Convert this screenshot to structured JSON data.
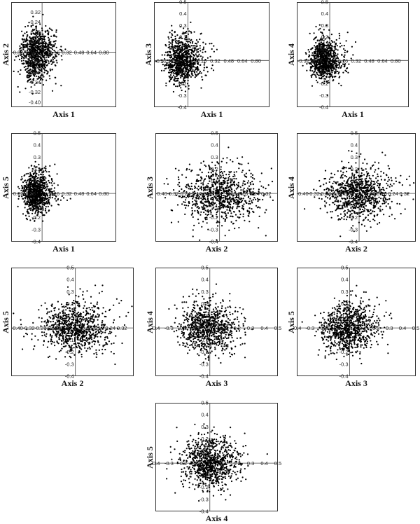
{
  "chart_data": [
    {
      "type": "scatter",
      "xlabel": "Axis 1",
      "ylabel": "Axis 2",
      "x_ticks": [
        "-0.32",
        "-0.16",
        "0.16",
        "0.32",
        "0.48",
        "0.64",
        "0.80"
      ],
      "y_ticks": [
        "0.32",
        "0.24",
        "0.16",
        "0.08",
        "-0.08",
        "-0.16",
        "-0.24",
        "-0.32",
        "-0.40"
      ],
      "xlim": [
        -0.4,
        0.96
      ],
      "ylim": [
        -0.44,
        0.4
      ],
      "n_points": 900,
      "cloud": {
        "cx": -0.08,
        "sx": 0.09,
        "cy": 0.0,
        "sy": 0.09,
        "skew_x": 0.35,
        "skew_y": -0.25,
        "seed": 11
      }
    },
    {
      "type": "scatter",
      "xlabel": "Axis 1",
      "ylabel": "Axis 3",
      "x_ticks": [
        "-0.32",
        "-0.16",
        "0.16",
        "0.32",
        "0.48",
        "0.64",
        "0.80"
      ],
      "y_ticks": [
        "0.5",
        "0.4",
        "0.3",
        "0.2",
        "0.1",
        "-0.1",
        "-0.2",
        "-0.3",
        "-0.4"
      ],
      "xlim": [
        -0.4,
        0.96
      ],
      "ylim": [
        -0.4,
        0.5
      ],
      "n_points": 900,
      "cloud": {
        "cx": -0.08,
        "sx": 0.09,
        "cy": -0.01,
        "sy": 0.09,
        "skew_x": 0.35,
        "skew_y": 0.2,
        "seed": 23
      }
    },
    {
      "type": "scatter",
      "xlabel": "Axis 1",
      "ylabel": "Axis 4",
      "x_ticks": [
        "-0.32",
        "-0.16",
        "0.16",
        "0.32",
        "0.48",
        "0.64",
        "0.80"
      ],
      "y_ticks": [
        "0.5",
        "0.4",
        "0.3",
        "0.2",
        "0.1",
        "-0.1",
        "-0.2",
        "-0.3",
        "-0.4"
      ],
      "xlim": [
        -0.4,
        0.96
      ],
      "ylim": [
        -0.4,
        0.5
      ],
      "n_points": 900,
      "cloud": {
        "cx": -0.07,
        "sx": 0.08,
        "cy": 0.0,
        "sy": 0.08,
        "skew_x": 0.4,
        "skew_y": 0.2,
        "seed": 37
      }
    },
    {
      "type": "scatter",
      "xlabel": "Axis 1",
      "ylabel": "Axis 5",
      "x_ticks": [
        "-0.32",
        "-0.16",
        "0.16",
        "0.32",
        "0.48",
        "0.64",
        "0.80"
      ],
      "y_ticks": [
        "0.5",
        "0.4",
        "0.3",
        "0.2",
        "0.1",
        "-0.1",
        "-0.2",
        "-0.3",
        "-0.4"
      ],
      "xlim": [
        -0.4,
        0.96
      ],
      "ylim": [
        -0.4,
        0.5
      ],
      "n_points": 900,
      "cloud": {
        "cx": -0.08,
        "sx": 0.08,
        "cy": 0.0,
        "sy": 0.08,
        "skew_x": 0.35,
        "skew_y": 0.1,
        "seed": 41
      }
    },
    {
      "type": "scatter",
      "xlabel": "Axis 2",
      "ylabel": "Axis 3",
      "x_ticks": [
        "-0.40",
        "-0.32",
        "-0.24",
        "-0.16",
        "-0.08",
        "0.08",
        "0.16",
        "0.24",
        "0.32"
      ],
      "y_ticks": [
        "0.5",
        "0.4",
        "0.3",
        "0.2",
        "0.1",
        "-0.1",
        "-0.2",
        "-0.3",
        "-0.4"
      ],
      "xlim": [
        -0.44,
        0.4
      ],
      "ylim": [
        -0.4,
        0.5
      ],
      "n_points": 900,
      "cloud": {
        "cx": 0.0,
        "sx": 0.13,
        "cy": -0.01,
        "sy": 0.11,
        "skew_x": 0.0,
        "skew_y": 0.1,
        "seed": 53
      }
    },
    {
      "type": "scatter",
      "xlabel": "Axis 2",
      "ylabel": "Axis 4",
      "x_ticks": [
        "-0.40",
        "-0.32",
        "-0.24",
        "-0.16",
        "-0.08",
        "0.08",
        "0.16",
        "0.24",
        "0.32"
      ],
      "y_ticks": [
        "0.5",
        "0.4",
        "0.3",
        "0.2",
        "0.1",
        "-0.1",
        "-0.2",
        "-0.3",
        "-0.4"
      ],
      "xlim": [
        -0.44,
        0.4
      ],
      "ylim": [
        -0.4,
        0.5
      ],
      "n_points": 900,
      "cloud": {
        "cx": 0.0,
        "sx": 0.12,
        "cy": 0.0,
        "sy": 0.1,
        "skew_x": 0.0,
        "skew_y": 0.1,
        "seed": 67
      }
    },
    {
      "type": "scatter",
      "xlabel": "Axis 2",
      "ylabel": "Axis 5",
      "x_ticks": [
        "-0.40",
        "-0.32",
        "-0.24",
        "-0.16",
        "-0.08",
        "0.08",
        "0.16",
        "0.24",
        "0.32"
      ],
      "y_ticks": [
        "0.5",
        "0.4",
        "0.3",
        "0.2",
        "0.1",
        "-0.1",
        "-0.2",
        "-0.3",
        "-0.4"
      ],
      "xlim": [
        -0.44,
        0.4
      ],
      "ylim": [
        -0.4,
        0.5
      ],
      "n_points": 900,
      "cloud": {
        "cx": 0.0,
        "sx": 0.12,
        "cy": 0.0,
        "sy": 0.1,
        "skew_x": 0.0,
        "skew_y": 0.1,
        "seed": 71
      }
    },
    {
      "type": "scatter",
      "xlabel": "Axis 3",
      "ylabel": "Axis 4",
      "x_ticks": [
        "-0.4",
        "-0.3",
        "-0.2",
        "-0.1",
        "0.1",
        "0.2",
        "0.3",
        "0.4",
        "0.5"
      ],
      "y_ticks": [
        "0.5",
        "0.4",
        "0.3",
        "0.2",
        "0.1",
        "-0.1",
        "-0.2",
        "-0.3",
        "-0.4"
      ],
      "xlim": [
        -0.4,
        0.5
      ],
      "ylim": [
        -0.4,
        0.5
      ],
      "n_points": 900,
      "cloud": {
        "cx": -0.01,
        "sx": 0.1,
        "cy": 0.0,
        "sy": 0.1,
        "skew_x": 0.1,
        "skew_y": 0.1,
        "seed": 83
      }
    },
    {
      "type": "scatter",
      "xlabel": "Axis 3",
      "ylabel": "Axis 5",
      "x_ticks": [
        "-0.4",
        "-0.3",
        "-0.2",
        "-0.1",
        "0.1",
        "0.2",
        "0.3",
        "0.4",
        "0.5"
      ],
      "y_ticks": [
        "0.5",
        "0.4",
        "0.3",
        "0.2",
        "0.1",
        "-0.1",
        "-0.2",
        "-0.3",
        "-0.4"
      ],
      "xlim": [
        -0.4,
        0.5
      ],
      "ylim": [
        -0.4,
        0.5
      ],
      "n_points": 900,
      "cloud": {
        "cx": -0.01,
        "sx": 0.1,
        "cy": 0.0,
        "sy": 0.1,
        "skew_x": 0.1,
        "skew_y": 0.1,
        "seed": 97
      }
    },
    {
      "type": "scatter",
      "xlabel": "Axis 4",
      "ylabel": "Axis 5",
      "x_ticks": [
        "-0.4",
        "-0.3",
        "-0.2",
        "-0.1",
        "0.1",
        "0.2",
        "0.3",
        "0.4",
        "0.5"
      ],
      "y_ticks": [
        "0.5",
        "0.4",
        "0.3",
        "0.2",
        "0.1",
        "-0.1",
        "-0.2",
        "-0.3",
        "-0.4"
      ],
      "xlim": [
        -0.4,
        0.5
      ],
      "ylim": [
        -0.4,
        0.5
      ],
      "n_points": 900,
      "cloud": {
        "cx": 0.0,
        "sx": 0.1,
        "cy": 0.0,
        "sy": 0.1,
        "skew_x": 0.1,
        "skew_y": 0.1,
        "seed": 109
      }
    }
  ]
}
